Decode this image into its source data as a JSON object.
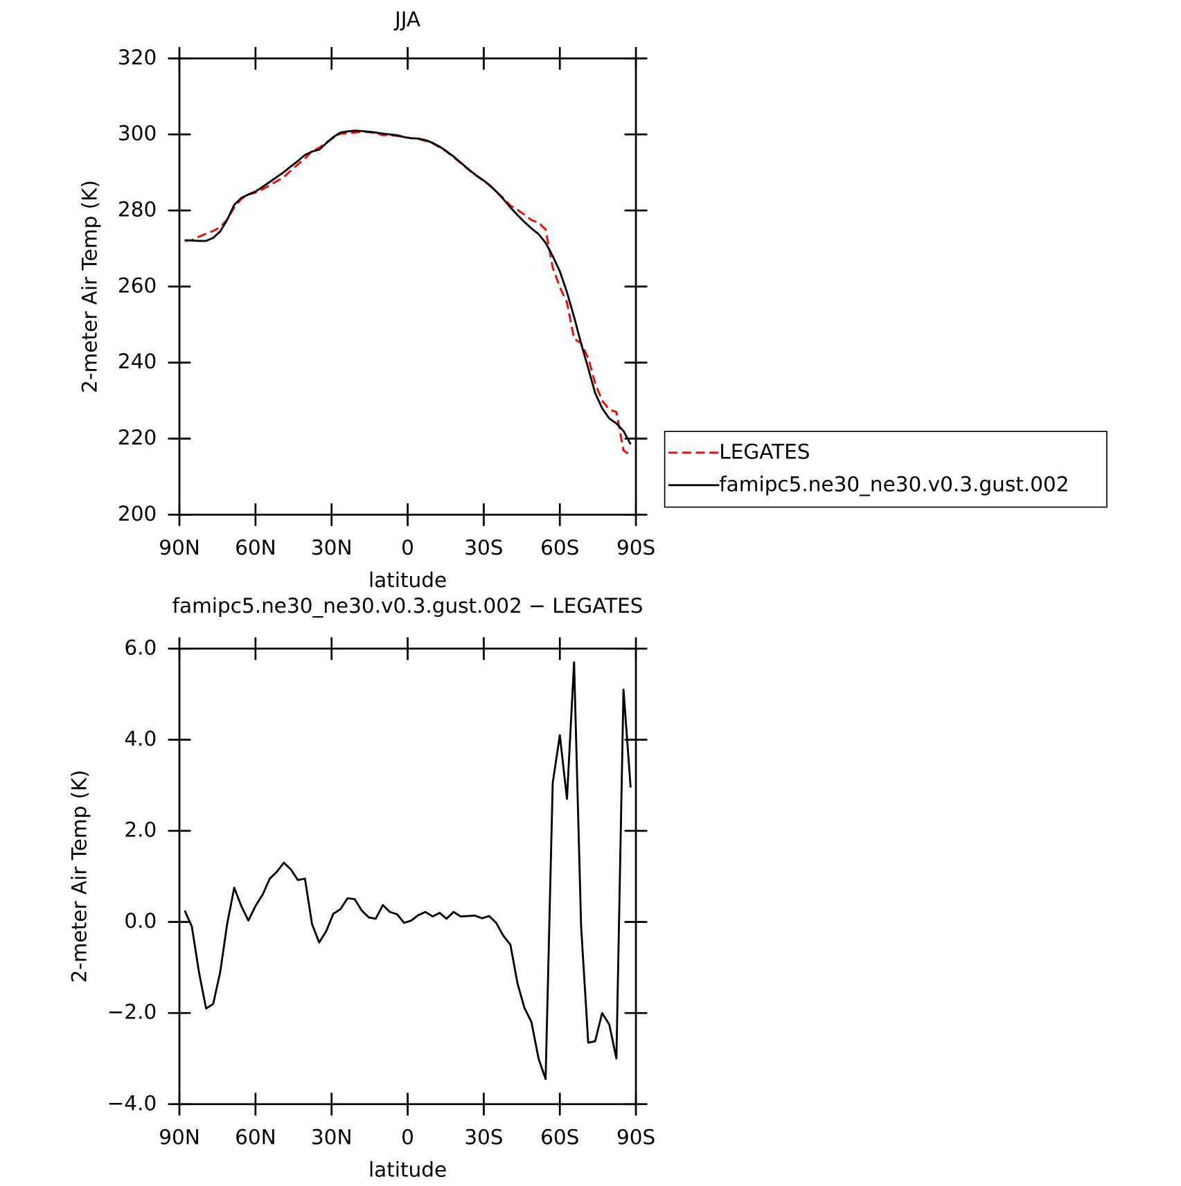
{
  "chart_data": [
    {
      "type": "line",
      "title": "JJA",
      "xlabel": "latitude",
      "ylabel": "2-meter Air Temp (K)",
      "x": [
        87.9,
        85.1,
        82.3,
        79.5,
        76.7,
        73.9,
        71.2,
        68.4,
        65.6,
        62.8,
        60.0,
        57.2,
        54.4,
        51.6,
        48.8,
        46.0,
        43.3,
        40.5,
        37.7,
        34.9,
        32.1,
        29.3,
        26.5,
        23.7,
        20.9,
        18.1,
        15.3,
        12.6,
        9.8,
        7.0,
        4.2,
        1.4,
        -1.4,
        -4.2,
        -7.0,
        -9.8,
        -12.6,
        -15.3,
        -18.1,
        -20.9,
        -23.7,
        -26.5,
        -29.3,
        -32.1,
        -34.9,
        -37.7,
        -40.5,
        -43.3,
        -46.0,
        -48.8,
        -51.6,
        -54.4,
        -57.2,
        -60.0,
        -62.8,
        -65.6,
        -68.4,
        -71.2,
        -73.9,
        -76.7,
        -79.5,
        -82.3,
        -85.1,
        -87.9
      ],
      "xlim": [
        90,
        -90
      ],
      "xticks": [
        {
          "value": 90,
          "label": "90N"
        },
        {
          "value": 60,
          "label": "60N"
        },
        {
          "value": 30,
          "label": "30N"
        },
        0,
        {
          "value": -30,
          "label": "30S"
        },
        {
          "value": -60,
          "label": "60S"
        },
        {
          "value": -90,
          "label": "90S"
        }
      ],
      "ylim": [
        200,
        320
      ],
      "yticks": [
        200,
        220,
        240,
        260,
        280,
        300,
        320
      ],
      "series": [
        {
          "name": "LEGATES",
          "color": "#ff0000",
          "dash": true,
          "values": [
            272.0,
            272.2,
            273.1,
            273.9,
            274.6,
            275.6,
            277.6,
            280.8,
            283.0,
            284.2,
            284.7,
            285.6,
            286.6,
            287.7,
            288.8,
            290.5,
            292.1,
            293.7,
            295.6,
            296.5,
            297.9,
            299.1,
            300.2,
            300.3,
            300.5,
            300.7,
            300.6,
            300.4,
            299.8,
            299.8,
            299.6,
            299.3,
            299.0,
            298.8,
            298.3,
            297.7,
            296.6,
            295.5,
            294.0,
            292.5,
            290.9,
            289.4,
            288.1,
            286.7,
            285.0,
            283.3,
            281.3,
            280.2,
            278.9,
            277.5,
            276.8,
            275.0,
            265.0,
            259.9,
            255.8,
            246.3,
            245.1,
            241.2,
            234.6,
            230.0,
            227.6,
            227.0,
            216.9,
            215.6
          ]
        },
        {
          "name": "famipc5.ne30_ne30.v0.3.gust.002",
          "color": "#000000",
          "dash": false,
          "values": [
            272.2,
            272.1,
            272.0,
            272.0,
            272.8,
            274.5,
            277.5,
            281.5,
            283.3,
            284.2,
            285.0,
            286.2,
            287.5,
            288.8,
            290.1,
            291.6,
            293.0,
            294.6,
            295.5,
            296.0,
            297.7,
            299.3,
            300.5,
            300.8,
            301.0,
            300.9,
            300.7,
            300.5,
            300.2,
            300.0,
            299.8,
            299.3,
            299.0,
            298.9,
            298.5,
            297.8,
            296.8,
            295.6,
            294.2,
            292.6,
            291.0,
            289.5,
            288.2,
            286.8,
            285.0,
            283.0,
            280.8,
            278.8,
            277.0,
            275.3,
            273.8,
            271.5,
            268.0,
            264.0,
            258.5,
            252.0,
            245.0,
            238.5,
            232.0,
            228.0,
            225.3,
            224.0,
            222.0,
            218.5
          ]
        }
      ]
    },
    {
      "type": "line",
      "title": "famipc5.ne30_ne30.v0.3.gust.002 − LEGATES",
      "xlabel": "latitude",
      "ylabel": "2-meter Air Temp (K)",
      "x": [
        87.9,
        85.1,
        82.3,
        79.5,
        76.7,
        73.9,
        71.2,
        68.4,
        65.6,
        62.8,
        60.0,
        57.2,
        54.4,
        51.6,
        48.8,
        46.0,
        43.3,
        40.5,
        37.7,
        34.9,
        32.1,
        29.3,
        26.5,
        23.7,
        20.9,
        18.1,
        15.3,
        12.6,
        9.8,
        7.0,
        4.2,
        1.4,
        -1.4,
        -4.2,
        -7.0,
        -9.8,
        -12.6,
        -15.3,
        -18.1,
        -20.9,
        -23.7,
        -26.5,
        -29.3,
        -32.1,
        -34.9,
        -37.7,
        -40.5,
        -43.3,
        -46.0,
        -48.8,
        -51.6,
        -54.4,
        -57.2,
        -60.0,
        -62.8,
        -65.6,
        -68.4,
        -71.2,
        -73.9,
        -76.7,
        -79.5,
        -82.3,
        -85.1,
        -87.9
      ],
      "xlim": [
        90,
        -90
      ],
      "xticks": [
        {
          "value": 90,
          "label": "90N"
        },
        {
          "value": 60,
          "label": "60N"
        },
        {
          "value": 30,
          "label": "30N"
        },
        0,
        {
          "value": -30,
          "label": "30S"
        },
        {
          "value": -60,
          "label": "60S"
        },
        {
          "value": -90,
          "label": "90S"
        }
      ],
      "ylim": [
        -4,
        6
      ],
      "yticks": [
        {
          "value": -4,
          "label": "−4.0"
        },
        {
          "value": -2,
          "label": "−2.0"
        },
        {
          "value": 0,
          "label": "0.0"
        },
        {
          "value": 2,
          "label": "2.0"
        },
        {
          "value": 4,
          "label": "4.0"
        },
        {
          "value": 6,
          "label": "6.0"
        }
      ],
      "series": [
        {
          "color": "#000000",
          "dash": false,
          "values": [
            0.25,
            -0.1,
            -1.1,
            -1.9,
            -1.8,
            -1.1,
            -0.05,
            0.75,
            0.35,
            0.03,
            0.35,
            0.6,
            0.95,
            1.1,
            1.3,
            1.15,
            0.92,
            0.95,
            -0.05,
            -0.45,
            -0.2,
            0.18,
            0.28,
            0.52,
            0.5,
            0.25,
            0.1,
            0.07,
            0.37,
            0.22,
            0.17,
            -0.02,
            0.03,
            0.15,
            0.22,
            0.12,
            0.2,
            0.07,
            0.22,
            0.12,
            0.13,
            0.14,
            0.08,
            0.13,
            -0.02,
            -0.3,
            -0.5,
            -1.35,
            -1.88,
            -2.2,
            -3.0,
            -3.45,
            3.05,
            4.1,
            2.7,
            5.7,
            -0.1,
            -2.65,
            -2.62,
            -2.0,
            -2.25,
            -3.0,
            5.1,
            2.95
          ]
        }
      ]
    }
  ]
}
